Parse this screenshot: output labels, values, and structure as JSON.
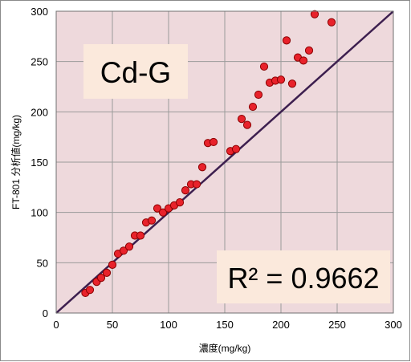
{
  "chart_data": {
    "type": "scatter",
    "title": "Cd-G",
    "annotation": "R² = 0.9662",
    "xlabel": "濃度(mg/kg)",
    "ylabel": "FT-801 分析値(mg/kg)",
    "xlim": [
      0,
      300
    ],
    "ylim": [
      0,
      300
    ],
    "xticks": [
      0,
      50,
      100,
      150,
      200,
      250,
      300
    ],
    "yticks": [
      0,
      50,
      100,
      150,
      200,
      250,
      300
    ],
    "grid": true,
    "reference_line": {
      "from": [
        0,
        0
      ],
      "to": [
        300,
        300
      ],
      "color": "#3d1f4f"
    },
    "colors": {
      "plot_background": "#eed9dc",
      "gridline": "#9a9a9a",
      "marker_fill": "#e8222b",
      "marker_stroke": "#8b0000",
      "label_box": "#fbe9dc"
    },
    "series": [
      {
        "points": [
          [
            26,
            20
          ],
          [
            30,
            23
          ],
          [
            36,
            31
          ],
          [
            40,
            35
          ],
          [
            45,
            40
          ],
          [
            50,
            48
          ],
          [
            55,
            59
          ],
          [
            60,
            62
          ],
          [
            65,
            66
          ],
          [
            70,
            77
          ],
          [
            75,
            77
          ],
          [
            80,
            90
          ],
          [
            85,
            92
          ],
          [
            90,
            104
          ],
          [
            95,
            100
          ],
          [
            100,
            104
          ],
          [
            105,
            107
          ],
          [
            110,
            110
          ],
          [
            115,
            122
          ],
          [
            120,
            128
          ],
          [
            125,
            128
          ],
          [
            130,
            145
          ],
          [
            135,
            169
          ],
          [
            140,
            170
          ],
          [
            155,
            161
          ],
          [
            160,
            163
          ],
          [
            165,
            193
          ],
          [
            170,
            187
          ],
          [
            175,
            205
          ],
          [
            180,
            217
          ],
          [
            185,
            245
          ],
          [
            190,
            229
          ],
          [
            195,
            231
          ],
          [
            200,
            232
          ],
          [
            205,
            271
          ],
          [
            210,
            228
          ],
          [
            215,
            254
          ],
          [
            220,
            251
          ],
          [
            225,
            261
          ],
          [
            230,
            297
          ],
          [
            245,
            289
          ]
        ]
      }
    ]
  }
}
